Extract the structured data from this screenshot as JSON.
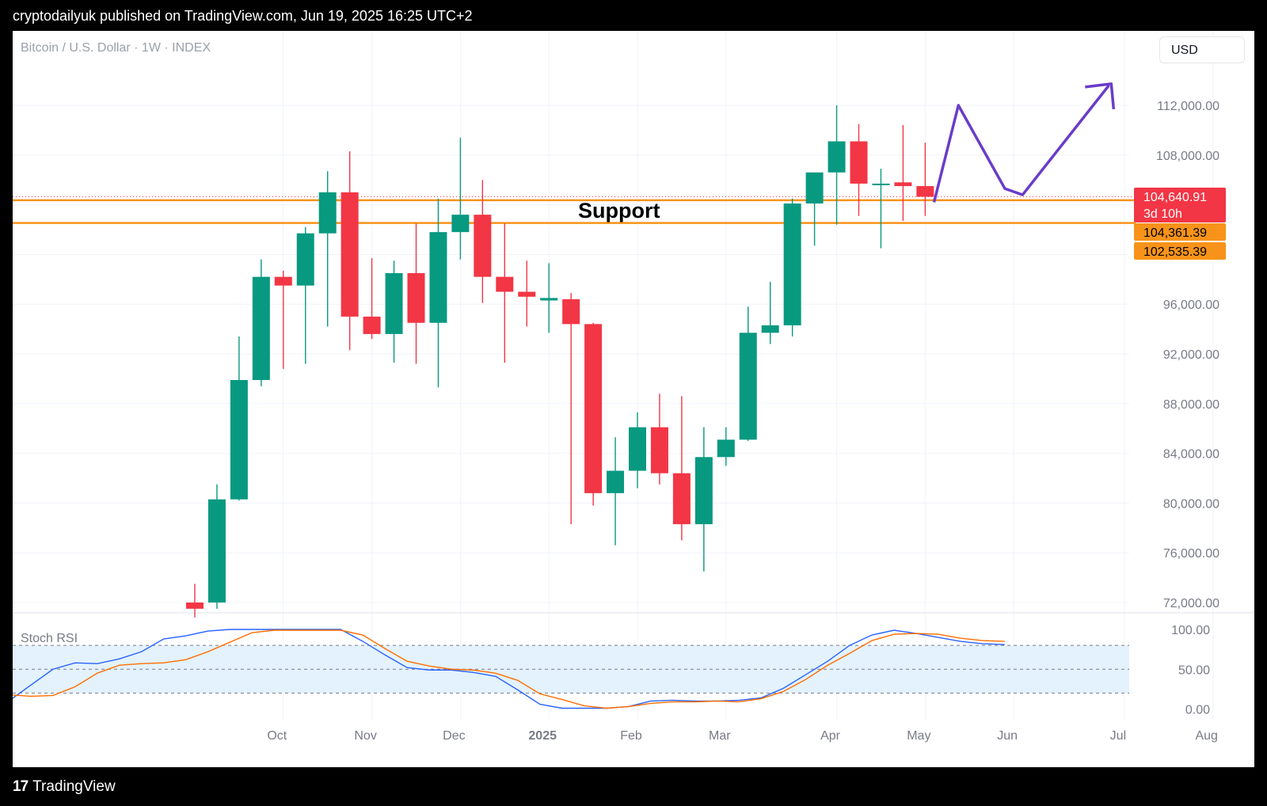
{
  "header": {
    "publisher_line": "cryptodailyuk published on TradingView.com, Jun 19, 2025 16:25 UTC+2"
  },
  "chart_header": {
    "symbol": "Bitcoin / U.S. Dollar · 1W · INDEX",
    "currency_button": "USD"
  },
  "footer": {
    "brand": "TradingView",
    "logo_icon": "tradingview-logo-icon"
  },
  "colors": {
    "up": "#089981",
    "down": "#f23645",
    "support_line": "#f7931a",
    "arrow": "#6a3cc8",
    "stoch_k": "#2962ff",
    "stoch_d": "#ff6d00",
    "band_fill": "#e3f2fd"
  },
  "annotations": {
    "support_label": "Support"
  },
  "price_labels": {
    "last": {
      "value": "104,640.91",
      "countdown": "3d 10h",
      "price": 104640.91
    },
    "support_upper": {
      "value": "104,361.39",
      "price": 104361.39
    },
    "support_lower": {
      "value": "102,535.39",
      "price": 102535.39
    }
  },
  "chart_data": [
    {
      "type": "candlestick",
      "title": "Bitcoin / U.S. Dollar · 1W · INDEX",
      "y_ticks": [
        "112,000.00",
        "108,000.00",
        "96,000.00",
        "92,000.00",
        "88,000.00",
        "84,000.00",
        "80,000.00",
        "76,000.00",
        "72,000.00"
      ],
      "y_tick_values": [
        112000,
        108000,
        96000,
        92000,
        88000,
        84000,
        80000,
        76000,
        72000
      ],
      "x_ticks": [
        {
          "label": "Oct",
          "week": 4
        },
        {
          "label": "Nov",
          "week": 8
        },
        {
          "label": "Dec",
          "week": 12
        },
        {
          "label": "2025",
          "week": 16,
          "bold": true
        },
        {
          "label": "Feb",
          "week": 20
        },
        {
          "label": "Mar",
          "week": 24
        },
        {
          "label": "Apr",
          "week": 29
        },
        {
          "label": "May",
          "week": 33
        },
        {
          "label": "Jun",
          "week": 37
        },
        {
          "label": "Jul",
          "week": 42
        },
        {
          "label": "Aug",
          "week": 46
        }
      ],
      "candles": [
        {
          "o": 72000,
          "h": 73500,
          "l": 70800,
          "c": 71500
        },
        {
          "o": 72000,
          "h": 81500,
          "l": 71500,
          "c": 80300
        },
        {
          "o": 80300,
          "h": 93400,
          "l": 80200,
          "c": 89900
        },
        {
          "o": 89900,
          "h": 99600,
          "l": 89400,
          "c": 98200
        },
        {
          "o": 98200,
          "h": 98700,
          "l": 90800,
          "c": 97500
        },
        {
          "o": 97500,
          "h": 102200,
          "l": 91200,
          "c": 101700
        },
        {
          "o": 101700,
          "h": 106700,
          "l": 94200,
          "c": 105000
        },
        {
          "o": 105000,
          "h": 108300,
          "l": 92300,
          "c": 95000
        },
        {
          "o": 95000,
          "h": 99700,
          "l": 93200,
          "c": 93600
        },
        {
          "o": 93600,
          "h": 99500,
          "l": 91300,
          "c": 98500
        },
        {
          "o": 98500,
          "h": 102500,
          "l": 91200,
          "c": 94500
        },
        {
          "o": 94500,
          "h": 104500,
          "l": 89300,
          "c": 101800
        },
        {
          "o": 101800,
          "h": 109400,
          "l": 99600,
          "c": 103200
        },
        {
          "o": 103200,
          "h": 106000,
          "l": 96100,
          "c": 98200
        },
        {
          "o": 98200,
          "h": 102500,
          "l": 91300,
          "c": 97000
        },
        {
          "o": 97000,
          "h": 99500,
          "l": 94200,
          "c": 96600
        },
        {
          "o": 96300,
          "h": 99300,
          "l": 93700,
          "c": 96500
        },
        {
          "o": 96400,
          "h": 96900,
          "l": 78300,
          "c": 94400
        },
        {
          "o": 94400,
          "h": 94500,
          "l": 79800,
          "c": 80800
        },
        {
          "o": 80800,
          "h": 85300,
          "l": 76600,
          "c": 82600
        },
        {
          "o": 82600,
          "h": 87300,
          "l": 81200,
          "c": 86100
        },
        {
          "o": 86100,
          "h": 88800,
          "l": 81500,
          "c": 82400
        },
        {
          "o": 82400,
          "h": 88600,
          "l": 77000,
          "c": 78300
        },
        {
          "o": 78300,
          "h": 86100,
          "l": 74500,
          "c": 83700
        },
        {
          "o": 83700,
          "h": 86100,
          "l": 83000,
          "c": 85100
        },
        {
          "o": 85100,
          "h": 95800,
          "l": 85000,
          "c": 93700
        },
        {
          "o": 93700,
          "h": 97800,
          "l": 92800,
          "c": 94300
        },
        {
          "o": 94300,
          "h": 104500,
          "l": 93400,
          "c": 104100
        },
        {
          "o": 104100,
          "h": 106400,
          "l": 100700,
          "c": 106600
        },
        {
          "o": 106600,
          "h": 112000,
          "l": 102400,
          "c": 109100
        },
        {
          "o": 109100,
          "h": 110500,
          "l": 103100,
          "c": 105700
        },
        {
          "o": 105700,
          "h": 106900,
          "l": 100500,
          "c": 105700
        },
        {
          "o": 105800,
          "h": 110400,
          "l": 102700,
          "c": 105500
        },
        {
          "o": 105500,
          "h": 109000,
          "l": 103100,
          "c": 104640.91
        }
      ],
      "support_levels": [
        104361.39,
        102535.39
      ]
    },
    {
      "type": "line",
      "title": "Stoch RSI",
      "y_ticks": [
        "100.00",
        "50.00",
        "0.00"
      ],
      "y_tick_values": [
        100,
        50,
        0
      ],
      "band": [
        20,
        80
      ],
      "series": [
        {
          "color": "#2962ff",
          "values": [
            10,
            30,
            50,
            58,
            57,
            63,
            72,
            88,
            92,
            98,
            100,
            100,
            100,
            100,
            100,
            100,
            85,
            68,
            52,
            49,
            49,
            46,
            41,
            24,
            6,
            1,
            1,
            1,
            3,
            10,
            11,
            10,
            10,
            11,
            14,
            26,
            43,
            60,
            80,
            93,
            99,
            95,
            90,
            85,
            82,
            81
          ]
        },
        {
          "color": "#ff6d00",
          "values": [
            18,
            16,
            17,
            28,
            45,
            55,
            57,
            58,
            62,
            72,
            84,
            96,
            99,
            99,
            99,
            99,
            93,
            76,
            60,
            54,
            50,
            49,
            45,
            36,
            19,
            12,
            4,
            1,
            3,
            7,
            9,
            9,
            10,
            9,
            13,
            22,
            37,
            55,
            70,
            86,
            94,
            95,
            94,
            89,
            86,
            85
          ]
        }
      ]
    }
  ],
  "projection_arrow": {
    "points": [
      [
        33.4,
        104200
      ],
      [
        34.5,
        112000
      ],
      [
        36.6,
        105300
      ],
      [
        37.4,
        104800
      ],
      [
        41.3,
        113600
      ]
    ]
  }
}
